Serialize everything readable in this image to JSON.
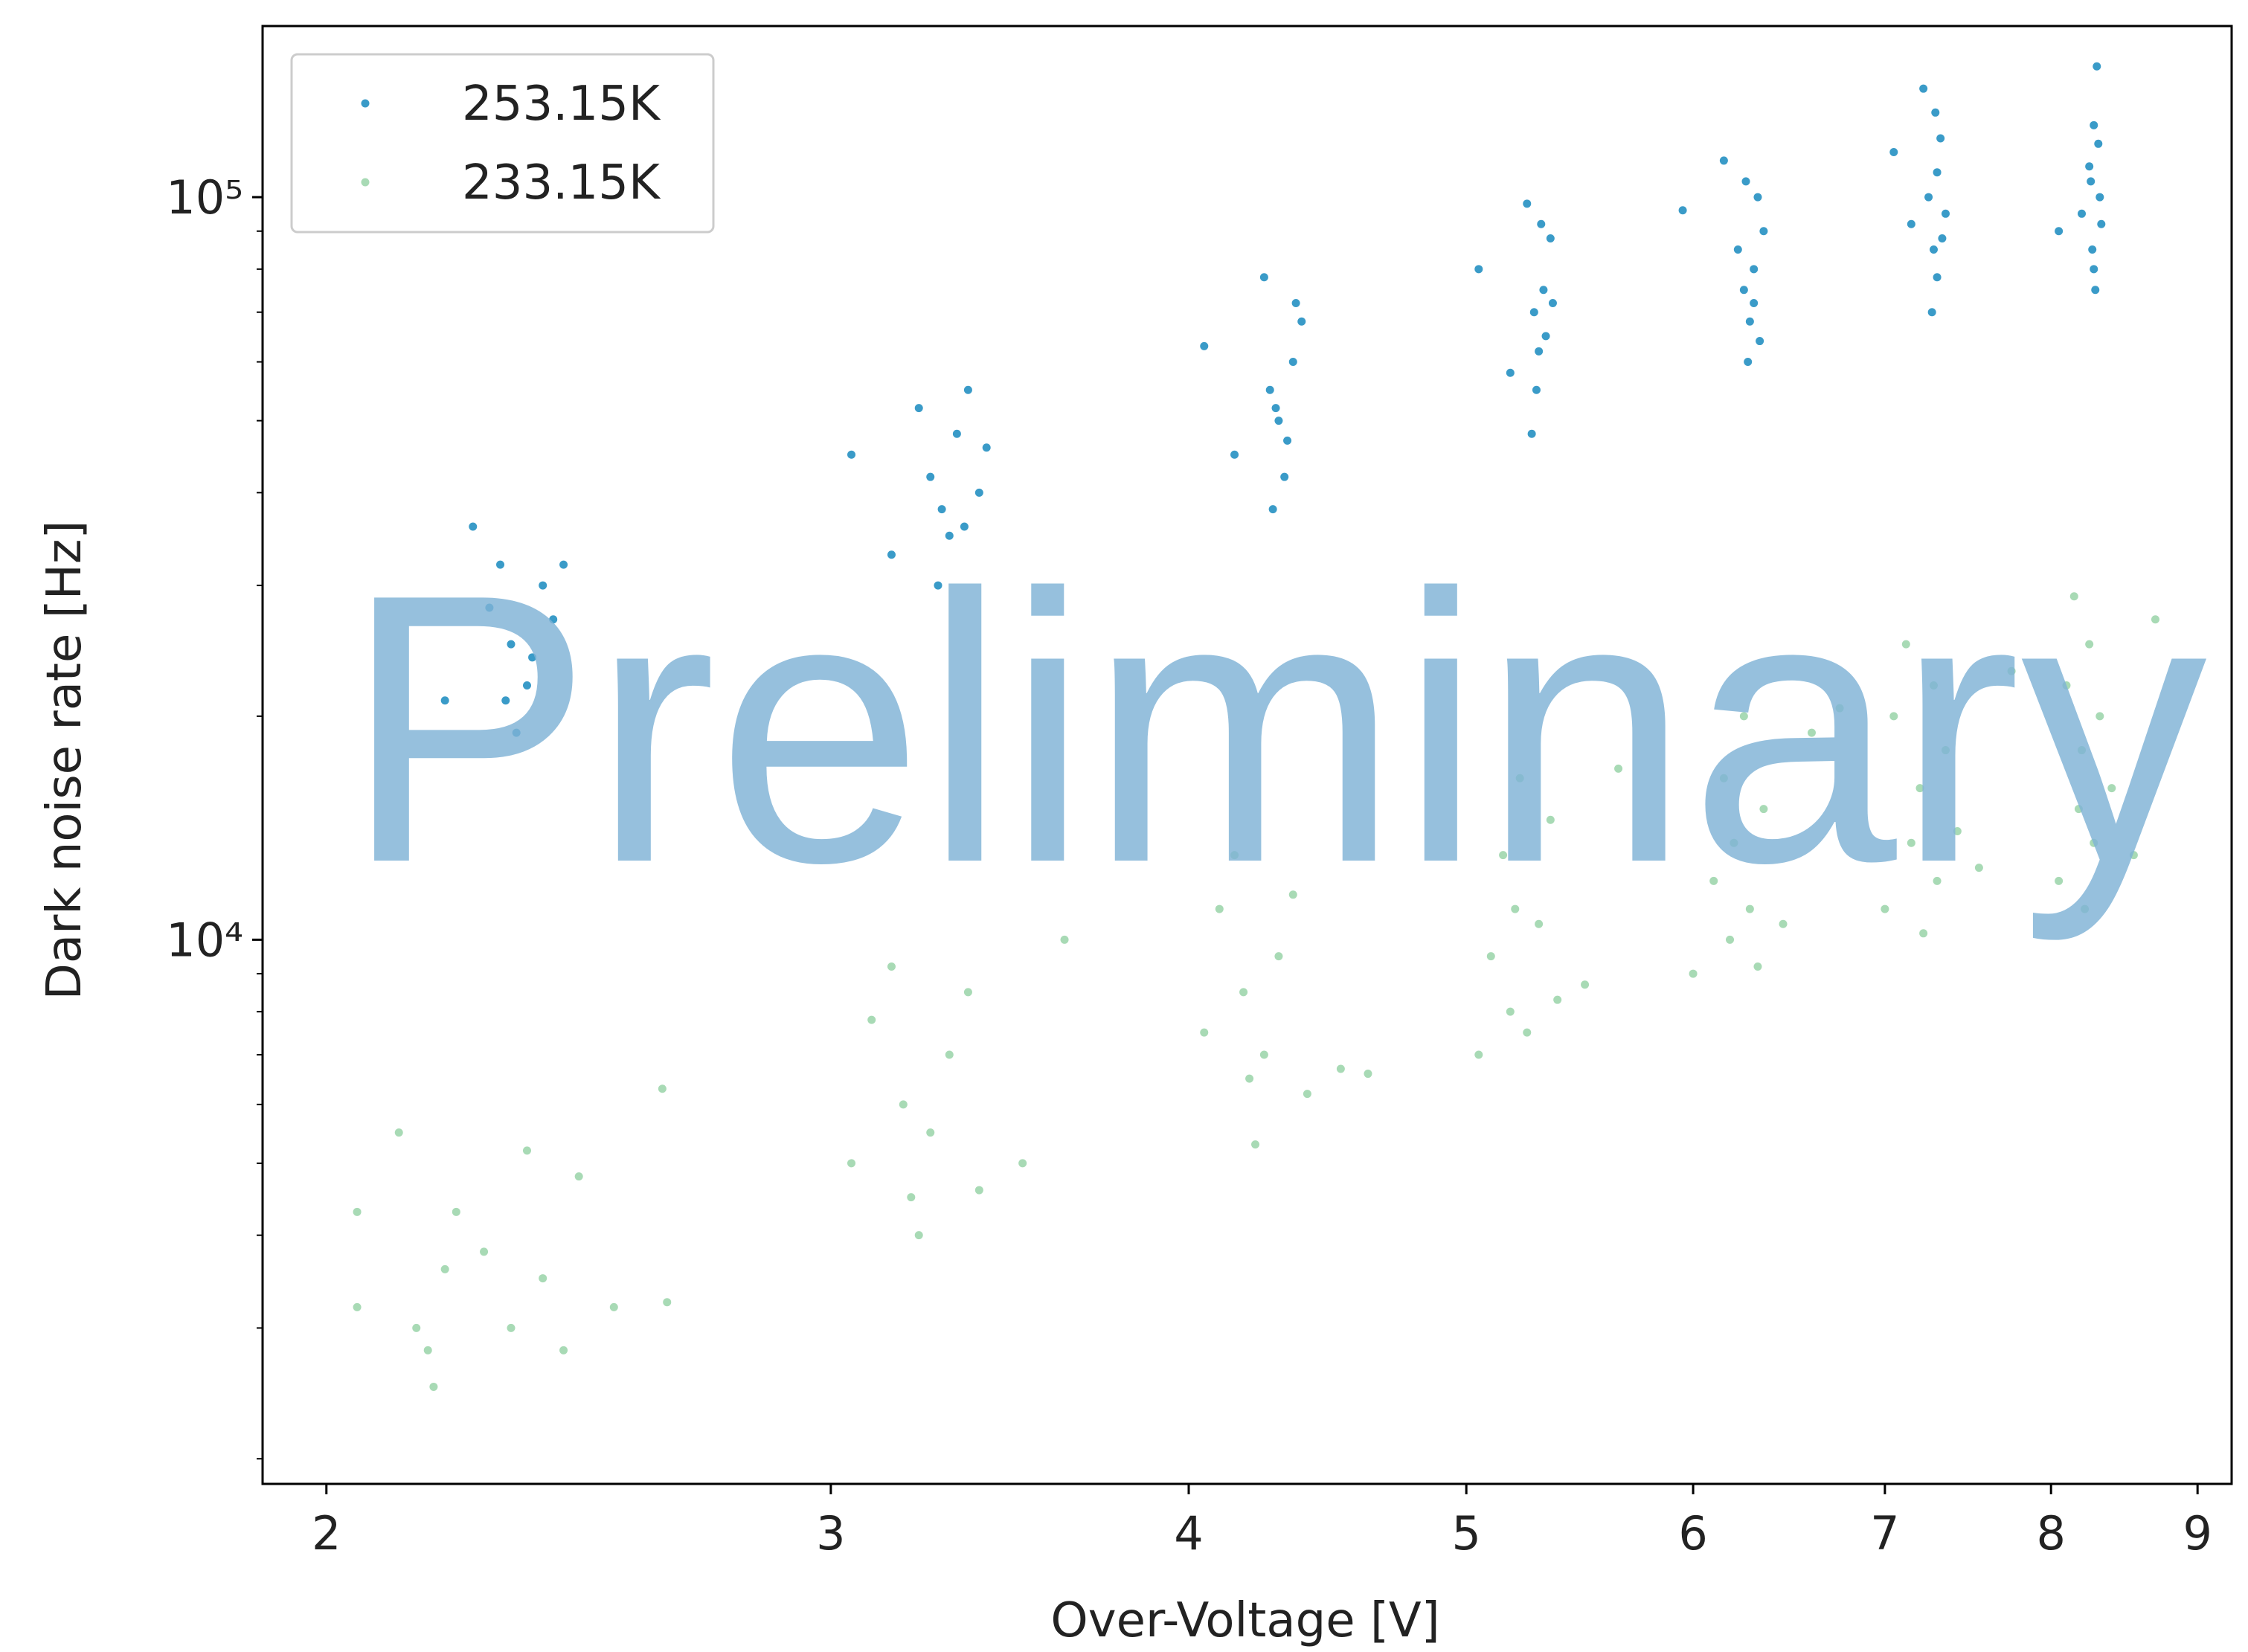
{
  "chart_data": {
    "type": "scatter",
    "xlabel": "Over-Voltage [V]",
    "ylabel": "Dark noise rate [Hz]",
    "watermark": "Preliminary",
    "xscale": "log",
    "yscale": "log",
    "xlim": [
      1.9,
      9.25
    ],
    "ylim": [
      1850,
      170000
    ],
    "xticks": [
      2,
      3,
      4,
      5,
      6,
      7,
      8,
      9
    ],
    "yticks": [
      {
        "value": 10000,
        "label": "10⁴"
      },
      {
        "value": 100000,
        "label": "10⁵"
      }
    ],
    "yminorticks": [
      2000,
      3000,
      4000,
      5000,
      6000,
      7000,
      8000,
      9000,
      20000,
      30000,
      40000,
      50000,
      60000,
      70000,
      80000,
      90000
    ],
    "legend": "upper left",
    "series": [
      {
        "name": "253.15K",
        "color": "#3a9bc8",
        "x": [
          2.28,
          2.32,
          2.35,
          2.3,
          2.38,
          2.33,
          2.25,
          2.4,
          2.36,
          2.31,
          2.2,
          2.42,
          3.05,
          3.15,
          3.22,
          3.25,
          3.28,
          3.3,
          3.32,
          3.35,
          3.38,
          3.27,
          3.34,
          3.4,
          4.05,
          4.15,
          4.25,
          4.27,
          4.3,
          4.32,
          4.35,
          4.28,
          4.38,
          4.33,
          4.36,
          4.29,
          5.05,
          5.18,
          5.25,
          5.28,
          5.3,
          5.32,
          5.27,
          5.35,
          5.33,
          5.29,
          5.36,
          5.31,
          5.95,
          6.15,
          6.22,
          6.25,
          6.28,
          6.3,
          6.32,
          6.27,
          6.35,
          6.3,
          6.33,
          6.26,
          7.05,
          7.15,
          7.22,
          7.25,
          7.28,
          7.3,
          7.32,
          7.27,
          7.35,
          7.3,
          7.33,
          7.29,
          8.05,
          8.2,
          8.25,
          8.27,
          8.3,
          8.28,
          8.32,
          8.29,
          8.31,
          8.26,
          8.33,
          8.28
        ],
        "values": [
          28000,
          25000,
          22000,
          32000,
          30000,
          19000,
          36000,
          27000,
          24000,
          21000,
          21000,
          32000,
          45000,
          33000,
          52000,
          42000,
          38000,
          35000,
          48000,
          55000,
          40000,
          30000,
          36000,
          46000,
          63000,
          45000,
          78000,
          55000,
          50000,
          42000,
          60000,
          38000,
          68000,
          47000,
          72000,
          52000,
          80000,
          58000,
          98000,
          70000,
          62000,
          75000,
          48000,
          88000,
          65000,
          55000,
          72000,
          92000,
          96000,
          112000,
          85000,
          75000,
          68000,
          80000,
          100000,
          60000,
          90000,
          72000,
          64000,
          105000,
          115000,
          92000,
          140000,
          100000,
          85000,
          78000,
          120000,
          70000,
          95000,
          108000,
          88000,
          130000,
          90000,
          95000,
          110000,
          85000,
          150000,
          125000,
          100000,
          75000,
          118000,
          105000,
          92000,
          80000
        ]
      },
      {
        "name": "233.15K",
        "color": "#a8dab5",
        "x": [
          2.05,
          2.05,
          2.12,
          2.15,
          2.17,
          2.18,
          2.2,
          2.22,
          2.27,
          2.32,
          2.35,
          2.38,
          2.42,
          2.45,
          2.52,
          2.62,
          2.63,
          3.05,
          3.1,
          3.15,
          3.18,
          3.2,
          3.22,
          3.25,
          3.3,
          3.35,
          3.38,
          3.5,
          3.62,
          4.05,
          4.1,
          4.15,
          4.18,
          4.2,
          4.22,
          4.25,
          4.3,
          4.35,
          4.4,
          4.52,
          4.62,
          5.05,
          5.1,
          5.15,
          5.18,
          5.2,
          5.22,
          5.25,
          5.3,
          5.35,
          5.38,
          5.5,
          5.65,
          6.0,
          6.1,
          6.15,
          6.18,
          6.2,
          6.25,
          6.28,
          6.32,
          6.35,
          6.45,
          6.6,
          6.75,
          7.0,
          7.05,
          7.12,
          7.15,
          7.2,
          7.22,
          7.28,
          7.3,
          7.35,
          7.42,
          7.55,
          7.75,
          8.05,
          8.1,
          8.15,
          8.18,
          8.2,
          8.22,
          8.25,
          8.28,
          8.32,
          8.4,
          8.55,
          8.7
        ],
        "values": [
          3200,
          4300,
          5500,
          3000,
          2800,
          2500,
          3600,
          4300,
          3800,
          3000,
          5200,
          3500,
          2800,
          4800,
          3200,
          6300,
          3250,
          5000,
          7800,
          9200,
          6000,
          4500,
          4000,
          5500,
          7000,
          8500,
          4600,
          5000,
          10000,
          7500,
          11000,
          13000,
          8500,
          6500,
          5300,
          7000,
          9500,
          11500,
          6200,
          6700,
          6600,
          7000,
          9500,
          13000,
          8000,
          11000,
          16500,
          7500,
          10500,
          14500,
          8300,
          8700,
          17000,
          9000,
          12000,
          16500,
          10000,
          13500,
          20000,
          11000,
          9200,
          15000,
          10500,
          19000,
          20500,
          11000,
          20000,
          25000,
          13500,
          16000,
          10200,
          22000,
          12000,
          18000,
          14000,
          12500,
          23000,
          12000,
          22000,
          29000,
          15000,
          18000,
          11000,
          25000,
          13500,
          20000,
          16000,
          13000,
          27000
        ]
      }
    ]
  }
}
